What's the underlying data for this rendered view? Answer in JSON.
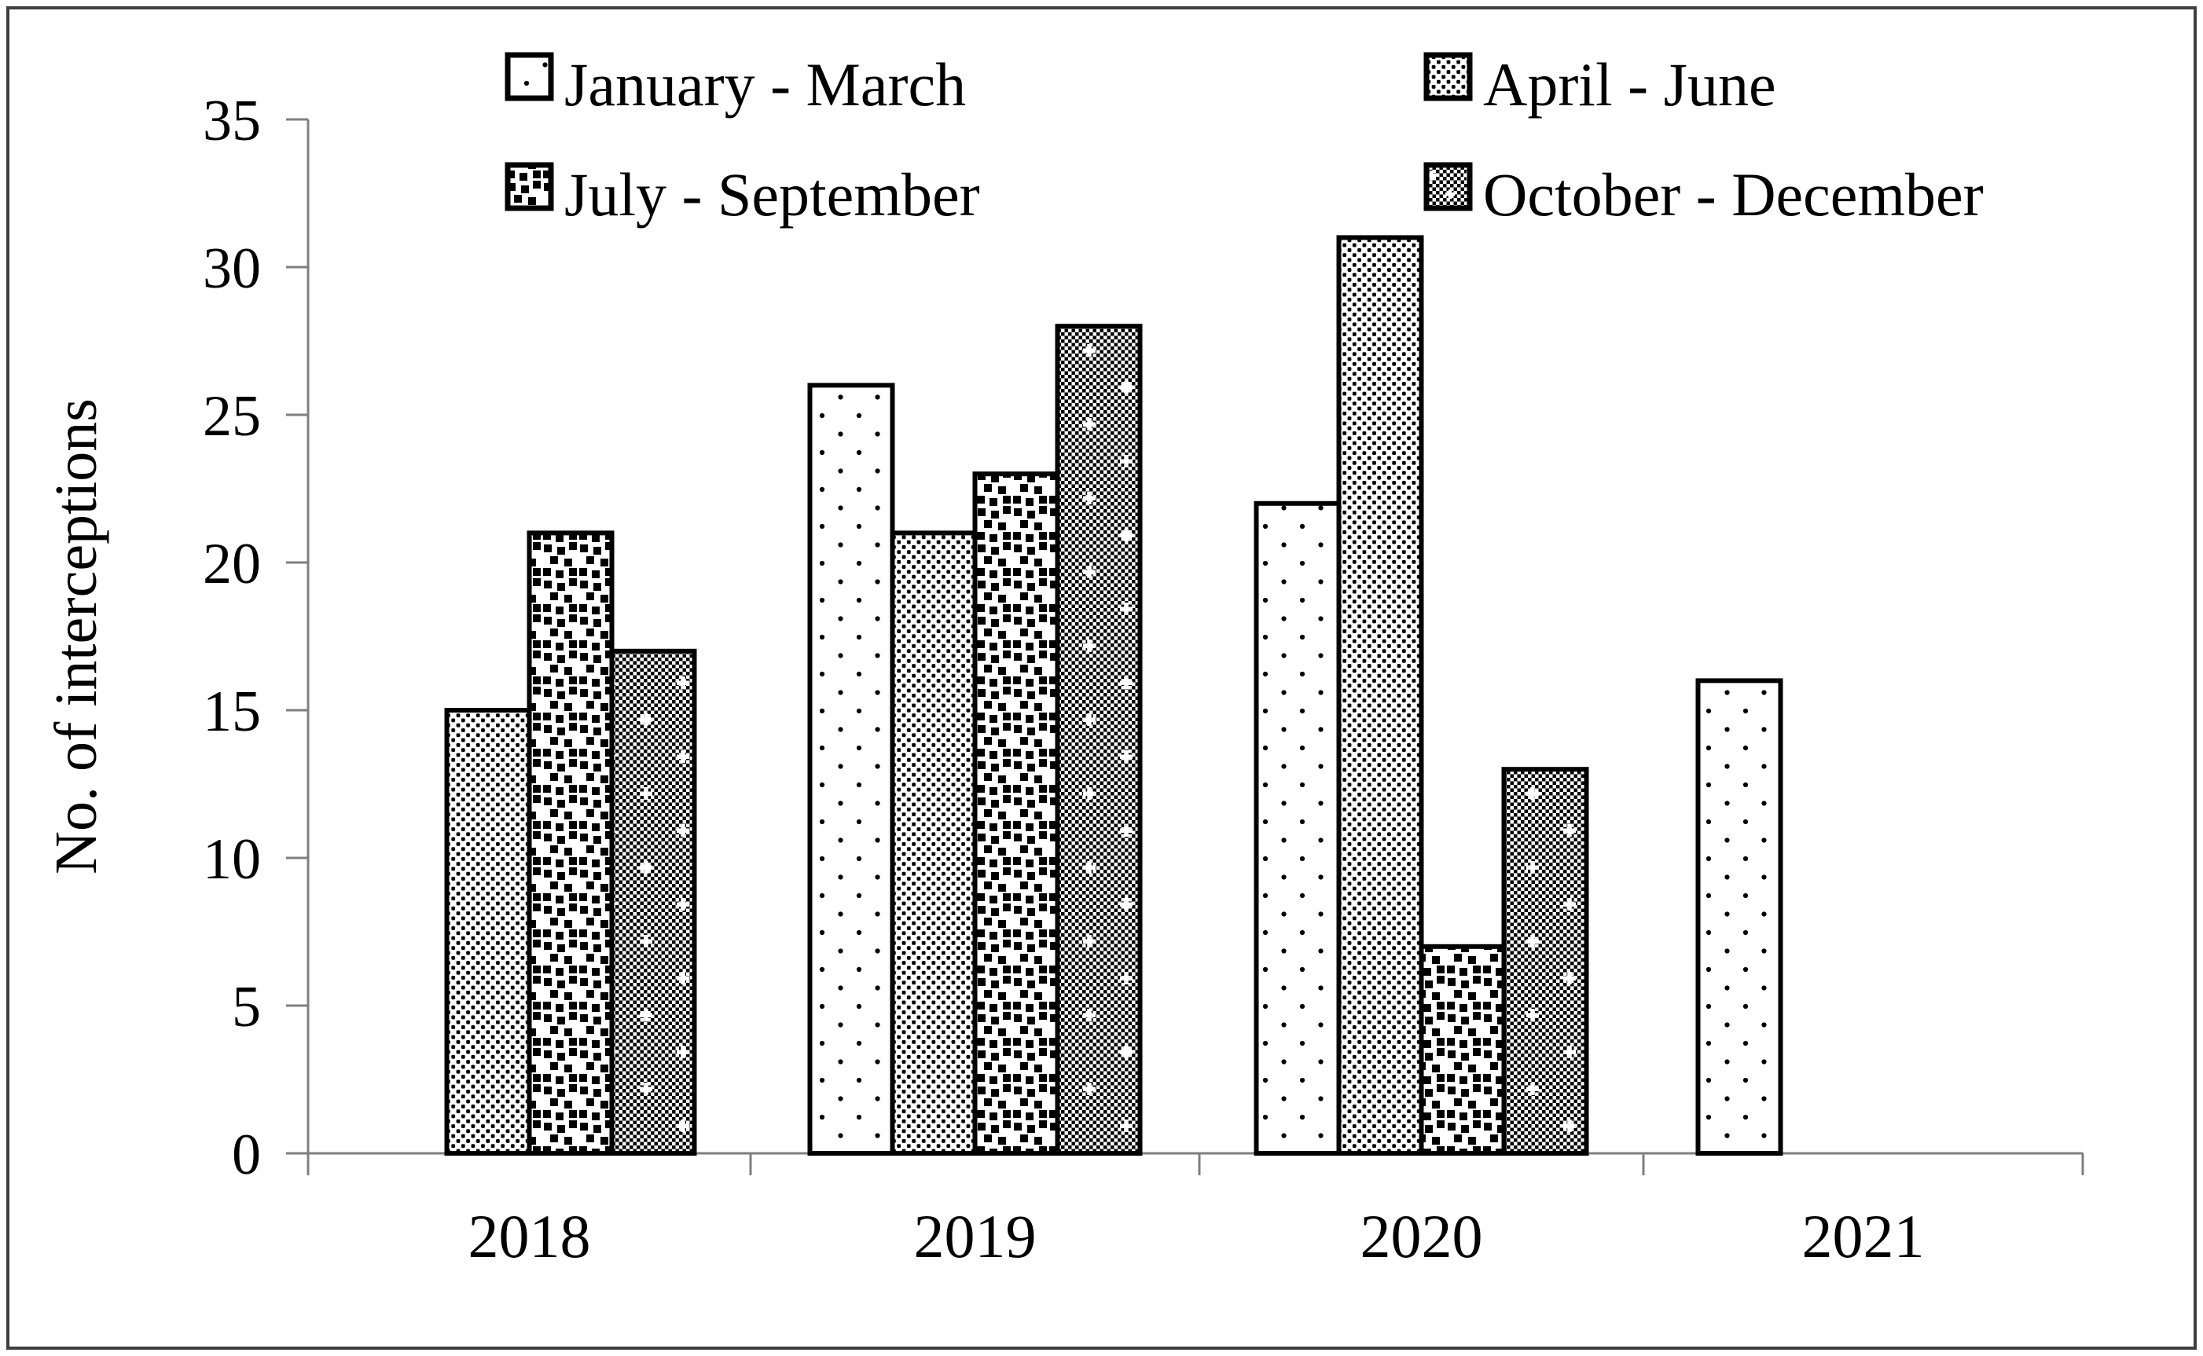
{
  "figure": {
    "background": "#ffffff",
    "border_color": "#3f3f3f",
    "axis_color": "#7f7f7f",
    "bar_outline_color": "#000000",
    "text_color": "#000000"
  },
  "chart_data": {
    "type": "bar",
    "title": "",
    "xlabel": "",
    "ylabel": "No. of interceptions",
    "categories": [
      "2018",
      "2019",
      "2020",
      "2021"
    ],
    "series": [
      {
        "name": "January - March",
        "pattern": "sparse-dots",
        "values": [
          null,
          26,
          22,
          16
        ]
      },
      {
        "name": "April - June",
        "pattern": "dense-dots",
        "values": [
          15,
          21,
          31,
          null
        ]
      },
      {
        "name": "July - September",
        "pattern": "confetti-squares",
        "values": [
          21,
          23,
          7,
          null
        ]
      },
      {
        "name": "October - December",
        "pattern": "diamond-weave",
        "values": [
          17,
          28,
          13,
          null
        ]
      }
    ],
    "ylim": [
      0,
      35
    ],
    "ytick_step": 5,
    "ytick_labels": [
      "0",
      "5",
      "10",
      "15",
      "20",
      "25",
      "30",
      "35"
    ],
    "grid": false,
    "legend_position": "top-inside",
    "legend_columns": 2
  }
}
